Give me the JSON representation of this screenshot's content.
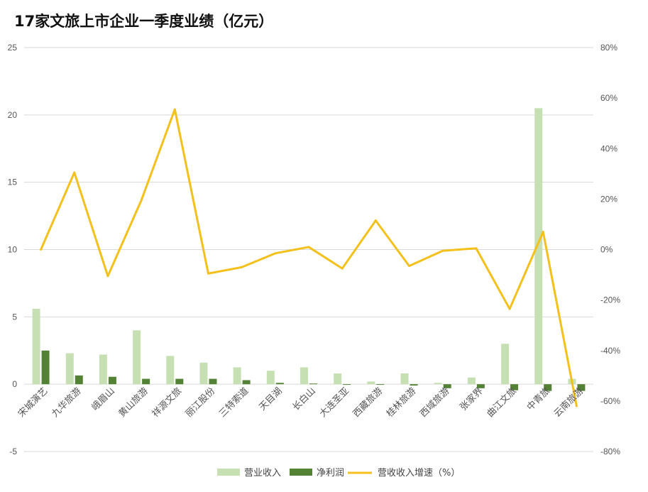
{
  "title": "17家文旅上市企业一季度业绩（亿元）",
  "colors": {
    "revenue": "#c6e0b4",
    "profit": "#548235",
    "growth": "#f4c01b",
    "grid": "#d9d9d9",
    "axis_text": "#555555"
  },
  "chart_data": {
    "type": "bar",
    "title": "17家文旅上市企业一季度业绩（亿元）",
    "categories": [
      "宋城演艺",
      "九华旅游",
      "峨眉山",
      "黄山旅游",
      "祥源文旅",
      "丽江股份",
      "三特索道",
      "天目湖",
      "长白山",
      "大连圣亚",
      "西藏旅游",
      "桂林旅游",
      "西域旅游",
      "张家界",
      "曲江文旅",
      "中青旅",
      "云南旅游"
    ],
    "series": [
      {
        "name": "营业收入",
        "axis": "left",
        "kind": "bar",
        "values": [
          5.6,
          2.3,
          2.2,
          4.0,
          2.1,
          1.6,
          1.25,
          1.0,
          1.25,
          0.8,
          0.2,
          0.8,
          0.1,
          0.5,
          3.0,
          20.5,
          0.4
        ]
      },
      {
        "name": "净利润",
        "axis": "left",
        "kind": "bar",
        "values": [
          2.5,
          0.65,
          0.55,
          0.4,
          0.4,
          0.4,
          0.3,
          0.1,
          0.05,
          -0.05,
          -0.05,
          -0.1,
          -0.3,
          -0.3,
          -0.45,
          -0.5,
          -0.5
        ]
      },
      {
        "name": "营收收入增速（%）",
        "axis": "right",
        "kind": "line",
        "values": [
          0,
          30.5,
          -10.5,
          19.5,
          55.5,
          -9.5,
          -7,
          -1.5,
          1,
          -7.5,
          11.5,
          -6.5,
          -0.5,
          0.5,
          -23.5,
          7,
          -62
        ]
      }
    ],
    "y_left": {
      "min": -5,
      "max": 25,
      "ticks": [
        "-5",
        "0",
        "5",
        "10",
        "15",
        "20",
        "25"
      ]
    },
    "y_right": {
      "min": -80,
      "max": 80,
      "ticks": [
        "-80%",
        "-60%",
        "-40%",
        "-20%",
        "0%",
        "20%",
        "40%",
        "60%",
        "80%"
      ]
    },
    "grid": true,
    "legend": "bottom"
  }
}
